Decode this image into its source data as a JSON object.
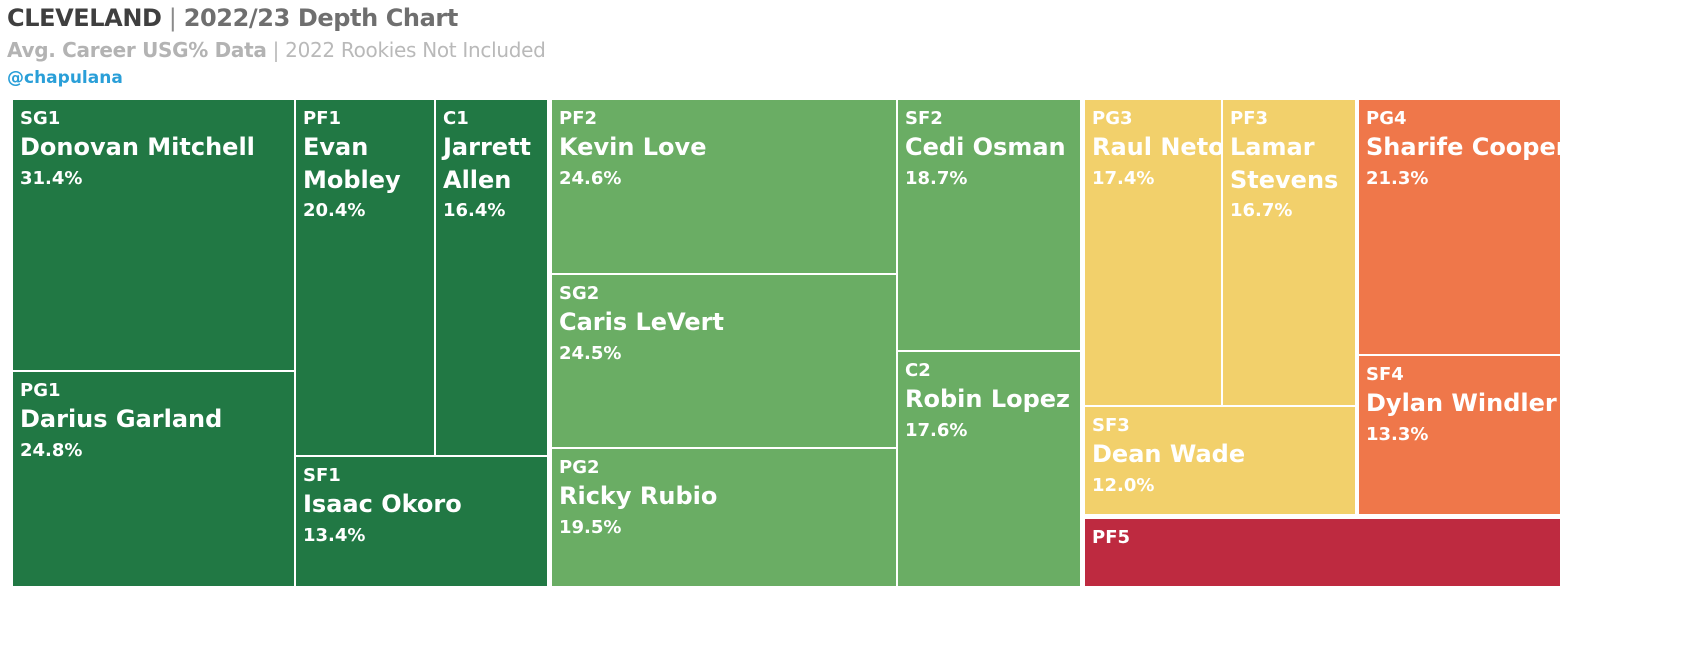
{
  "header": {
    "team": "CLEVELAND",
    "separator": " | ",
    "title_rest": "2022/23 Depth Chart",
    "subtitle_strong": "Avg. Career USG% Data",
    "subtitle_sep": " | ",
    "subtitle_rest": "2022 Rookies Not Included",
    "handle": "@chapulana"
  },
  "colors": {
    "dark_green": "#217844",
    "light_green": "#6aad64",
    "yellow": "#f2d06b",
    "orange": "#ef774a",
    "red": "#be2a40"
  },
  "chart_data": {
    "type": "treemap",
    "title": "CLEVELAND | 2022/23 Depth Chart",
    "subtitle": "Avg. Career USG% Data | 2022 Rookies Not Included",
    "metric": "USG%",
    "groups": [
      {
        "depth": 1,
        "color": "#217844",
        "items": [
          {
            "position": "SG1",
            "player": "Donovan Mitchell",
            "usg_pct": 31.4,
            "label": "31.4%"
          },
          {
            "position": "PG1",
            "player": "Darius Garland",
            "usg_pct": 24.8,
            "label": "24.8%"
          },
          {
            "position": "PF1",
            "player": "Evan Mobley",
            "usg_pct": 20.4,
            "label": "20.4%"
          },
          {
            "position": "C1",
            "player": "Jarrett Allen",
            "usg_pct": 16.4,
            "label": "16.4%"
          },
          {
            "position": "SF1",
            "player": "Isaac Okoro",
            "usg_pct": 13.4,
            "label": "13.4%"
          }
        ]
      },
      {
        "depth": 2,
        "color": "#6aad64",
        "items": [
          {
            "position": "PF2",
            "player": "Kevin Love",
            "usg_pct": 24.6,
            "label": "24.6%"
          },
          {
            "position": "SG2",
            "player": "Caris LeVert",
            "usg_pct": 24.5,
            "label": "24.5%"
          },
          {
            "position": "PG2",
            "player": "Ricky Rubio",
            "usg_pct": 19.5,
            "label": "19.5%"
          },
          {
            "position": "SF2",
            "player": "Cedi Osman",
            "usg_pct": 18.7,
            "label": "18.7%"
          },
          {
            "position": "C2",
            "player": "Robin Lopez",
            "usg_pct": 17.6,
            "label": "17.6%"
          }
        ]
      },
      {
        "depth": 3,
        "color": "#f2d06b",
        "items": [
          {
            "position": "PG3",
            "player": "Raul Neto",
            "usg_pct": 17.4,
            "label": "17.4%"
          },
          {
            "position": "PF3",
            "player": "Lamar Stevens",
            "usg_pct": 16.7,
            "label": "16.7%"
          },
          {
            "position": "SF3",
            "player": "Dean Wade",
            "usg_pct": 12.0,
            "label": "12.0%"
          }
        ]
      },
      {
        "depth": 4,
        "color": "#ef774a",
        "items": [
          {
            "position": "PG4",
            "player": "Sharife Cooper",
            "usg_pct": 21.3,
            "label": "21.3%"
          },
          {
            "position": "SF4",
            "player": "Dylan Windler",
            "usg_pct": 13.3,
            "label": "13.3%"
          }
        ]
      },
      {
        "depth": 5,
        "color": "#be2a40",
        "items": [
          {
            "position": "PF5",
            "player": "",
            "usg_pct": null,
            "label": ""
          }
        ]
      }
    ]
  }
}
